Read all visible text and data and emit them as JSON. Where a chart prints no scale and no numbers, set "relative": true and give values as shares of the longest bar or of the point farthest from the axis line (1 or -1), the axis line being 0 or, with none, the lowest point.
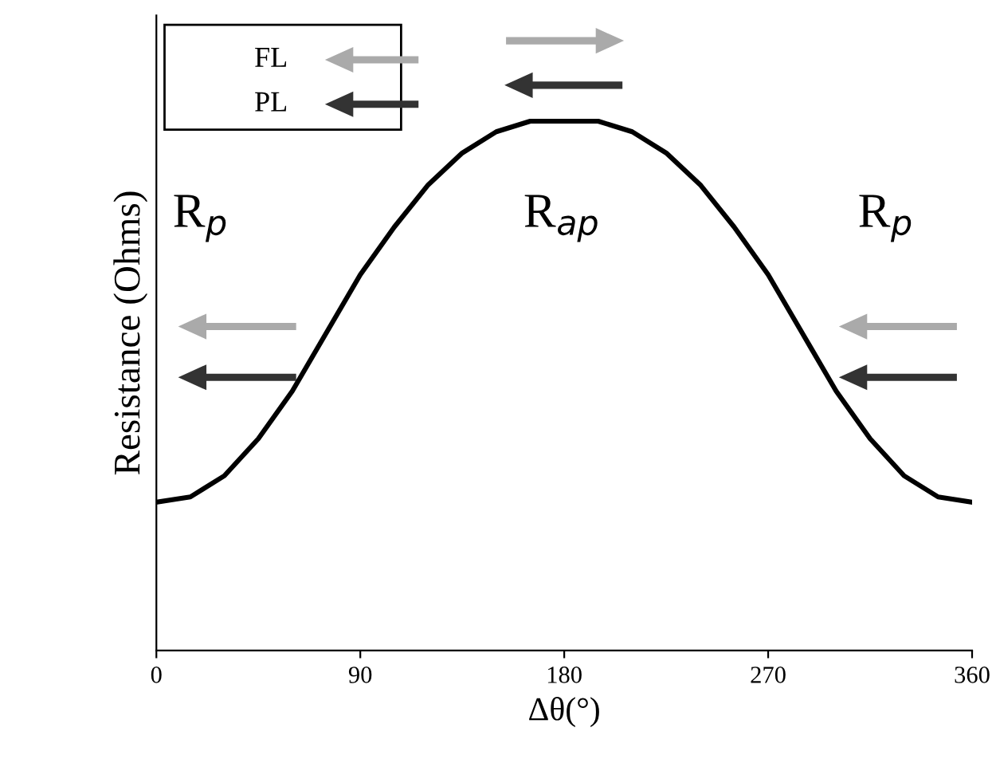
{
  "chart_data": {
    "type": "line",
    "relative": true,
    "xlabel": "Δθ(°)",
    "ylabel": "Resistance (Ohms)",
    "x": [
      0,
      15,
      30,
      45,
      60,
      75,
      90,
      105,
      120,
      135,
      150,
      165,
      180,
      195,
      210,
      225,
      240,
      255,
      270,
      285,
      300,
      315,
      330,
      345,
      360
    ],
    "series": [
      {
        "color": "#000000",
        "values": [
          0.28,
          0.29,
          0.33,
          0.4,
          0.49,
          0.6,
          0.71,
          0.8,
          0.88,
          0.94,
          0.98,
          1.0,
          1.0,
          1.0,
          0.98,
          0.94,
          0.88,
          0.8,
          0.71,
          0.6,
          0.49,
          0.4,
          0.33,
          0.29,
          0.28
        ]
      }
    ],
    "xlim": [
      0,
      360
    ],
    "xticks": [
      0,
      90,
      180,
      270,
      360
    ],
    "grid": false,
    "marker": "none",
    "line_style": "solid",
    "tick_labels": "x",
    "annotations": [
      "R$_{p}$",
      "R$_{ap}$",
      "R$_{p}$",
      "FL",
      "PL"
    ]
  }
}
